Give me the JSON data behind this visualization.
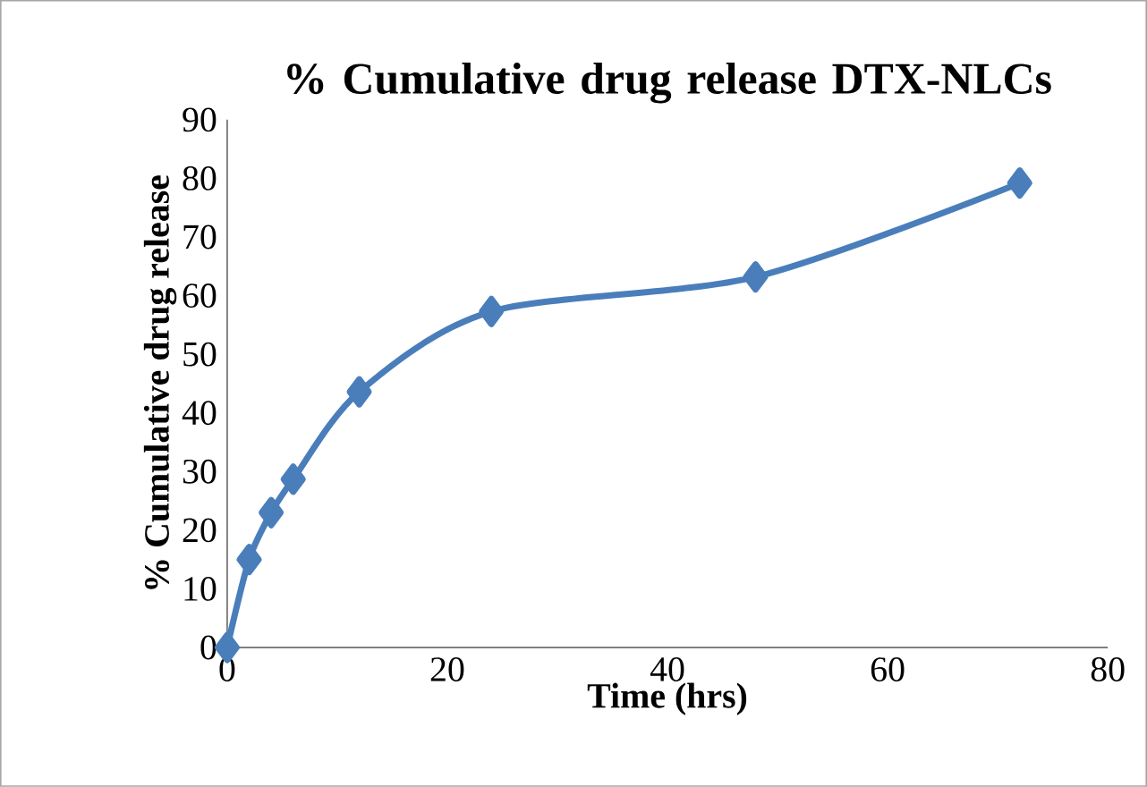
{
  "chart_data": {
    "type": "line",
    "title": "% Cumulative drug release  DTX-NLCs",
    "xlabel": "Time (hrs)",
    "ylabel": "% Cumulative drug release",
    "x": [
      0,
      2,
      4,
      6,
      12,
      24,
      48,
      72
    ],
    "values": [
      0,
      15,
      23,
      28.7,
      43.6,
      57.3,
      63.2,
      79.2
    ],
    "color": "#4a7ebb",
    "marker": "diamond",
    "xlim": [
      0,
      80
    ],
    "ylim": [
      0,
      90
    ],
    "xticks": [
      0,
      20,
      40,
      60,
      80
    ],
    "yticks": [
      0,
      10,
      20,
      30,
      40,
      50,
      60,
      70,
      80,
      90
    ]
  }
}
